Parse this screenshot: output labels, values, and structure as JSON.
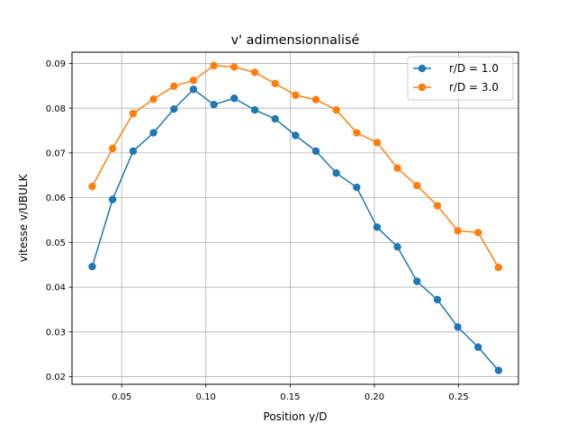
{
  "chart_data": {
    "type": "line",
    "title": "v' adimensionnalisé",
    "xlabel": "Position y/D",
    "ylabel": "vitesse v/UBULK",
    "xlim": [
      0.0205,
      0.2855
    ],
    "ylim": [
      0.0183,
      0.0925
    ],
    "grid": true,
    "legend_position": "upper right",
    "xticks": [
      0.05,
      0.1,
      0.15,
      0.2,
      0.25
    ],
    "xtick_labels": [
      "0.05",
      "0.10",
      "0.15",
      "0.20",
      "0.25"
    ],
    "yticks": [
      0.02,
      0.03,
      0.04,
      0.05,
      0.06,
      0.07,
      0.08,
      0.09
    ],
    "ytick_labels": [
      "0.02",
      "0.03",
      "0.04",
      "0.05",
      "0.06",
      "0.07",
      "0.08",
      "0.09"
    ],
    "x": [
      0.0325,
      0.0446,
      0.0568,
      0.0689,
      0.081,
      0.0926,
      0.1047,
      0.1168,
      0.129,
      0.1411,
      0.1532,
      0.1653,
      0.1774,
      0.1895,
      0.2016,
      0.2137,
      0.2253,
      0.2374,
      0.2495,
      0.2616,
      0.2737
    ],
    "series": [
      {
        "name": "r/D = 1.0",
        "color": "#1f77b4",
        "values": [
          0.0446,
          0.0596,
          0.0704,
          0.0745,
          0.0798,
          0.0842,
          0.0808,
          0.0822,
          0.0796,
          0.0776,
          0.0739,
          0.0704,
          0.0655,
          0.0623,
          0.0534,
          0.049,
          0.0413,
          0.0372,
          0.0311,
          0.0266,
          0.0214
        ]
      },
      {
        "name": "r/D = 3.0",
        "color": "#ff7f0e",
        "values": [
          0.0625,
          0.071,
          0.0788,
          0.082,
          0.0849,
          0.0862,
          0.0895,
          0.0892,
          0.088,
          0.0855,
          0.0829,
          0.0819,
          0.0796,
          0.0745,
          0.0723,
          0.0666,
          0.0627,
          0.0582,
          0.0526,
          0.0522,
          0.0444
        ]
      }
    ]
  }
}
